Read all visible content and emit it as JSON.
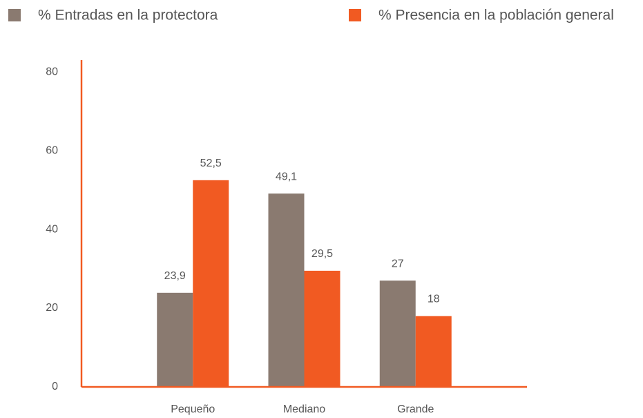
{
  "chart_data": {
    "type": "bar",
    "categories": [
      "Pequeño",
      "Mediano",
      "Grande"
    ],
    "series": [
      {
        "name": "% Entradas en la protectora",
        "color": "#8a7a70",
        "values": [
          23.9,
          49.1,
          27
        ],
        "value_labels": [
          "23,9",
          "49,1",
          "27"
        ]
      },
      {
        "name": "% Presencia en la población general",
        "color": "#f15a22",
        "values": [
          52.5,
          29.5,
          18
        ],
        "value_labels": [
          "52,5",
          "29,5",
          "18"
        ]
      }
    ],
    "ylim": [
      0,
      83
    ],
    "yticks": [
      0,
      20,
      40,
      60,
      80
    ],
    "grid": false,
    "axis_color": "#f15a22"
  }
}
